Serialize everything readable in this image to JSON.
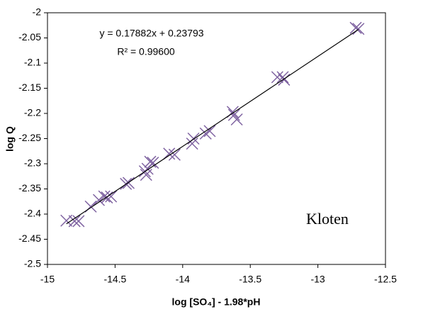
{
  "chart_data": {
    "type": "scatter",
    "x_label": "log [SO₄] - 1.98*pH",
    "y_label": "log Q",
    "xlim": [
      -15,
      -12.5
    ],
    "xticks": [
      -15,
      -14.5,
      -14,
      -13.5,
      -13,
      -12.5
    ],
    "ylim": [
      -2.5,
      -2
    ],
    "yticks": [
      -2.5,
      -2.45,
      -2.4,
      -2.35,
      -2.3,
      -2.25,
      -2.2,
      -2.15,
      -2.1,
      -2.05,
      -2
    ],
    "grid": false,
    "series": [
      {
        "color": "#7f63a1",
        "x": [
          -14.86,
          -14.8,
          -14.77,
          -14.68,
          -14.62,
          -14.58,
          -14.56,
          -14.53,
          -14.42,
          -14.4,
          -14.28,
          -14.27,
          -14.26,
          -14.24,
          -14.22,
          -14.1,
          -14.06,
          -13.93,
          -13.92,
          -13.83,
          -13.8,
          -13.63,
          -13.62,
          -13.6,
          -13.3,
          -13.26,
          -13.25,
          -12.72,
          -12.7
        ],
        "values": [
          -2.413,
          -2.414,
          -2.414,
          -2.385,
          -2.372,
          -2.365,
          -2.367,
          -2.365,
          -2.34,
          -2.338,
          -2.315,
          -2.322,
          -2.31,
          -2.296,
          -2.298,
          -2.28,
          -2.282,
          -2.26,
          -2.25,
          -2.24,
          -2.235,
          -2.197,
          -2.203,
          -2.212,
          -2.128,
          -2.128,
          -2.133,
          -2.03,
          -2.032
        ]
      }
    ],
    "trendline": {
      "equation": "y = 0.17882x + 0.23793",
      "r_squared": "R² = 0.99600",
      "slope": 0.17882,
      "intercept": 0.23793,
      "color": "#000000"
    },
    "annotation": "Kloten"
  }
}
